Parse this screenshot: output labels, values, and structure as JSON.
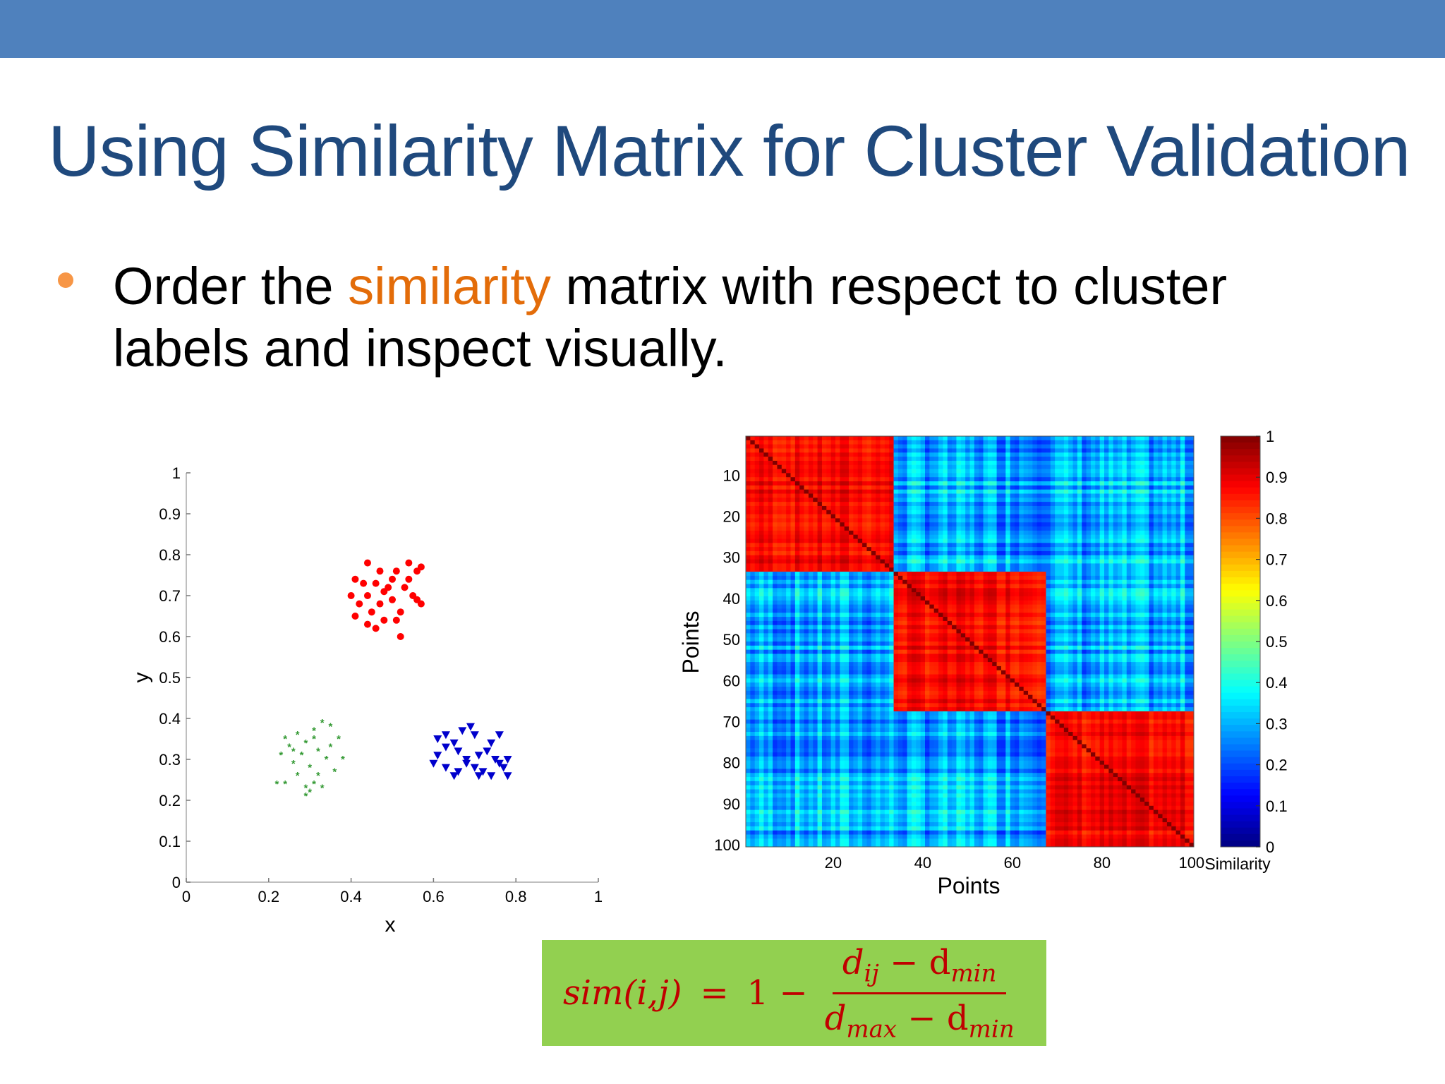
{
  "slide": {
    "title": "Using Similarity Matrix for Cluster Validation",
    "bullet_pre": "Order the ",
    "bullet_highlight": "similarity",
    "bullet_post": " matrix with respect to cluster labels and inspect visually."
  },
  "formula": {
    "lhs": "sim(i,j)",
    "eq": "=",
    "one_minus": "1 −",
    "numerator": "d",
    "num_sub1": "ij",
    "num_minus": " − d",
    "num_sub2": "min",
    "denominator": "d",
    "den_sub1": "max",
    "den_minus": " − d",
    "den_sub2": "min"
  },
  "chart_data": [
    {
      "type": "scatter",
      "title": "",
      "xlabel": "x",
      "ylabel": "y",
      "xlim": [
        0,
        1
      ],
      "ylim": [
        0,
        1
      ],
      "xticks": [
        "0",
        "0.2",
        "0.4",
        "0.6",
        "0.8",
        "1"
      ],
      "yticks": [
        "0",
        "0.1",
        "0.2",
        "0.3",
        "0.4",
        "0.5",
        "0.6",
        "0.7",
        "0.8",
        "0.9",
        "1"
      ],
      "series": [
        {
          "marker": "circle",
          "color": "#ff0000",
          "points": [
            [
              0.44,
              0.78
            ],
            [
              0.47,
              0.76
            ],
            [
              0.49,
              0.72
            ],
            [
              0.51,
              0.76
            ],
            [
              0.54,
              0.78
            ],
            [
              0.56,
              0.76
            ],
            [
              0.57,
              0.77
            ],
            [
              0.41,
              0.74
            ],
            [
              0.44,
              0.7
            ],
            [
              0.46,
              0.73
            ],
            [
              0.48,
              0.71
            ],
            [
              0.5,
              0.74
            ],
            [
              0.53,
              0.72
            ],
            [
              0.55,
              0.7
            ],
            [
              0.4,
              0.7
            ],
            [
              0.42,
              0.68
            ],
            [
              0.45,
              0.66
            ],
            [
              0.47,
              0.68
            ],
            [
              0.5,
              0.69
            ],
            [
              0.52,
              0.66
            ],
            [
              0.56,
              0.69
            ],
            [
              0.41,
              0.65
            ],
            [
              0.44,
              0.63
            ],
            [
              0.46,
              0.62
            ],
            [
              0.48,
              0.64
            ],
            [
              0.51,
              0.64
            ],
            [
              0.52,
              0.6
            ],
            [
              0.57,
              0.68
            ],
            [
              0.43,
              0.73
            ],
            [
              0.54,
              0.74
            ]
          ]
        },
        {
          "marker": "star",
          "color": "#339933",
          "points": [
            [
              0.24,
              0.35
            ],
            [
              0.25,
              0.33
            ],
            [
              0.27,
              0.36
            ],
            [
              0.29,
              0.34
            ],
            [
              0.31,
              0.37
            ],
            [
              0.33,
              0.39
            ],
            [
              0.35,
              0.38
            ],
            [
              0.37,
              0.35
            ],
            [
              0.23,
              0.31
            ],
            [
              0.26,
              0.29
            ],
            [
              0.28,
              0.31
            ],
            [
              0.3,
              0.28
            ],
            [
              0.32,
              0.32
            ],
            [
              0.34,
              0.3
            ],
            [
              0.36,
              0.27
            ],
            [
              0.38,
              0.3
            ],
            [
              0.22,
              0.24
            ],
            [
              0.24,
              0.24
            ],
            [
              0.27,
              0.26
            ],
            [
              0.29,
              0.23
            ],
            [
              0.3,
              0.22
            ],
            [
              0.31,
              0.24
            ],
            [
              0.33,
              0.23
            ],
            [
              0.32,
              0.26
            ],
            [
              0.35,
              0.33
            ],
            [
              0.29,
              0.21
            ],
            [
              0.31,
              0.35
            ],
            [
              0.26,
              0.32
            ]
          ]
        },
        {
          "marker": "triangle-down",
          "color": "#0000cc",
          "points": [
            [
              0.61,
              0.35
            ],
            [
              0.63,
              0.36
            ],
            [
              0.65,
              0.34
            ],
            [
              0.67,
              0.37
            ],
            [
              0.69,
              0.38
            ],
            [
              0.7,
              0.36
            ],
            [
              0.74,
              0.34
            ],
            [
              0.76,
              0.36
            ],
            [
              0.61,
              0.31
            ],
            [
              0.63,
              0.33
            ],
            [
              0.66,
              0.32
            ],
            [
              0.68,
              0.3
            ],
            [
              0.71,
              0.31
            ],
            [
              0.73,
              0.32
            ],
            [
              0.75,
              0.3
            ],
            [
              0.78,
              0.3
            ],
            [
              0.6,
              0.29
            ],
            [
              0.63,
              0.28
            ],
            [
              0.66,
              0.27
            ],
            [
              0.68,
              0.29
            ],
            [
              0.7,
              0.28
            ],
            [
              0.72,
              0.27
            ],
            [
              0.74,
              0.26
            ],
            [
              0.77,
              0.28
            ],
            [
              0.65,
              0.26
            ],
            [
              0.71,
              0.26
            ],
            [
              0.76,
              0.29
            ],
            [
              0.78,
              0.26
            ]
          ]
        }
      ]
    },
    {
      "type": "heatmap",
      "title": "",
      "xlabel": "Points",
      "ylabel": "Points",
      "size": 100,
      "cluster_blocks": [
        [
          1,
          33
        ],
        [
          34,
          67
        ],
        [
          68,
          100
        ]
      ],
      "within_cluster_similarity": [
        0.8,
        0.95
      ],
      "between_cluster_similarity": [
        0.15,
        0.45
      ],
      "diagonal_similarity": 1,
      "xticks": [
        "20",
        "40",
        "60",
        "80",
        "100"
      ],
      "yticks": [
        "10",
        "20",
        "30",
        "40",
        "50",
        "60",
        "70",
        "80",
        "90",
        "100"
      ],
      "colorbar": {
        "label": "Similarity",
        "ticks": [
          "0",
          "0.1",
          "0.2",
          "0.3",
          "0.4",
          "0.5",
          "0.6",
          "0.7",
          "0.8",
          "0.9",
          "1"
        ],
        "colormap": "jet"
      }
    }
  ]
}
